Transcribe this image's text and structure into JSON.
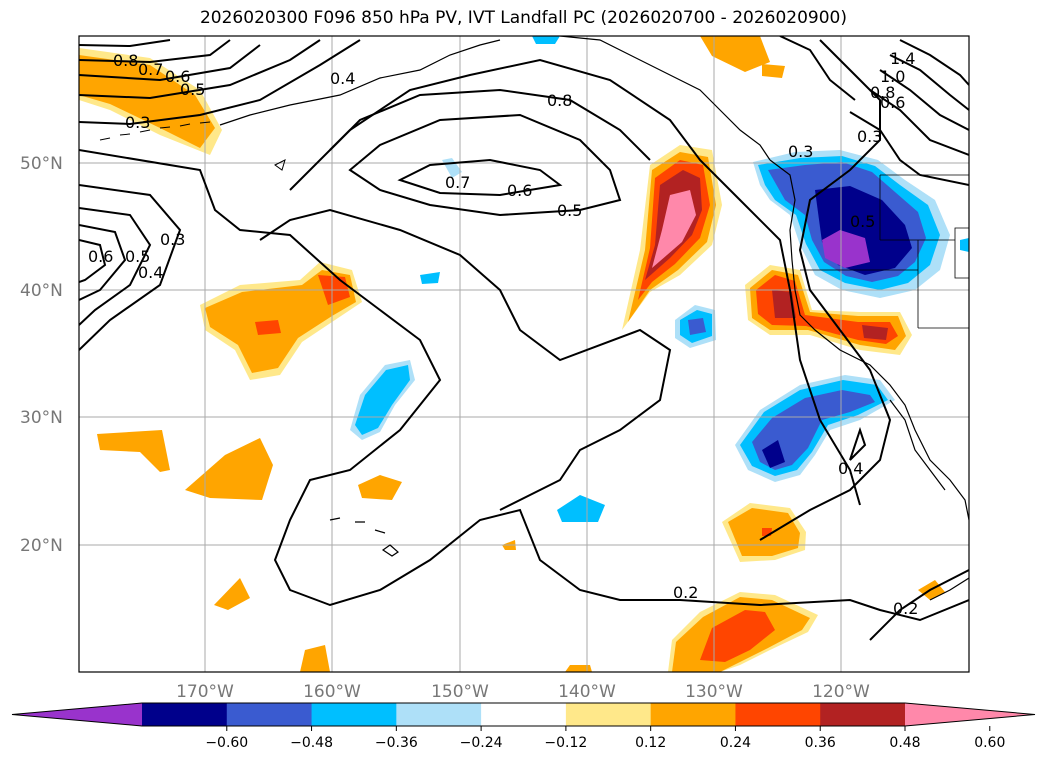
{
  "title": "2026020300 F096 850 hPa PV, IVT Landfall PC (2026020700 - 2026020900)",
  "latitude_labels": [
    "50°N",
    "40°N",
    "30°N",
    "20°N"
  ],
  "longitude_labels": [
    "170°W",
    "160°W",
    "150°W",
    "140°W",
    "130°W",
    "120°W"
  ],
  "contour_labels": [
    "0.8",
    "0.7",
    "0.6",
    "0.5",
    "0.3",
    "0.4",
    "0.8",
    "0.7",
    "0.6",
    "0.5",
    "0.6",
    "0.5",
    "0.4",
    "0.3",
    "0.3",
    "0.3",
    "0.5",
    "1.4",
    "1.0",
    "0.8",
    "0.6",
    "0.4",
    "0.2",
    "0.2"
  ],
  "colorbar": {
    "ticks": [
      "−0.60",
      "−0.48",
      "−0.36",
      "−0.24",
      "−0.12",
      "0.12",
      "0.24",
      "0.36",
      "0.48",
      "0.60"
    ],
    "colors": [
      "#9933cc",
      "#00008b",
      "#3a5bd0",
      "#00bfff",
      "#aee0f8",
      "#ffffff",
      "#ffe88a",
      "#ffa500",
      "#ff4500",
      "#b22222",
      "#ff88aa"
    ]
  }
}
